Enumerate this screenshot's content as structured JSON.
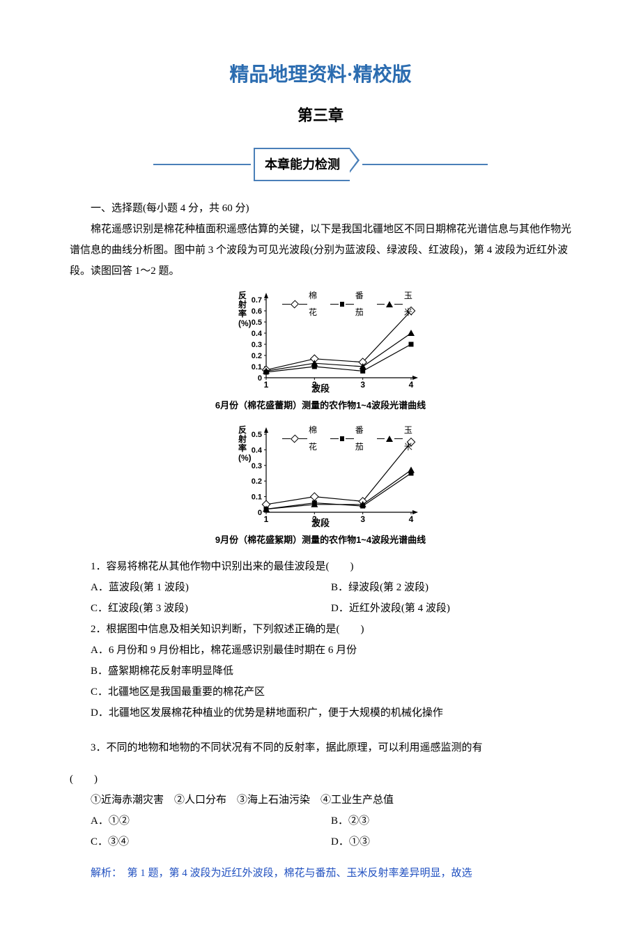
{
  "banner": "精品地理资料·精校版",
  "chapter": "第三章",
  "section_badge": "本章能力检测",
  "part1_heading": "一、选择题(每小题 4 分，共 60 分)",
  "intro_para": "棉花遥感识别是棉花种植面积遥感估算的关键，以下是我国北疆地区不同日期棉花光谱信息与其他作物光谱信息的曲线分析图。图中前 3 个波段为可见光波段(分别为蓝波段、绿波段、红波段)，第 4 波段为近红外波段。读图回答 1～2 题。",
  "chart": {
    "ylabel": "反射率(%)",
    "xlabel": "波段",
    "legend": {
      "cotton": "棉花",
      "tomato": "番茄",
      "corn": "玉米"
    },
    "x_ticks": [
      1,
      2,
      3,
      4
    ],
    "chart1": {
      "caption": "6月份（棉花盛蕾期）测量的农作物1~4波段光谱曲线",
      "y_ticks": [
        0,
        0.1,
        0.2,
        0.3,
        0.4,
        0.5,
        0.6,
        0.7
      ],
      "ymax": 0.7,
      "cotton": [
        0.07,
        0.17,
        0.14,
        0.6
      ],
      "tomato": [
        0.05,
        0.1,
        0.06,
        0.3
      ],
      "corn": [
        0.06,
        0.13,
        0.1,
        0.4
      ]
    },
    "chart2": {
      "caption": "9月份（棉花盛絮期）测量的农作物1~4波段光谱曲线",
      "y_ticks": [
        0,
        0.1,
        0.2,
        0.3,
        0.4,
        0.5
      ],
      "ymax": 0.5,
      "cotton": [
        0.05,
        0.1,
        0.07,
        0.45
      ],
      "tomato": [
        0.02,
        0.06,
        0.04,
        0.25
      ],
      "corn": [
        0.02,
        0.05,
        0.05,
        0.27
      ]
    },
    "axis_color": "#000000",
    "line_color": "#000000"
  },
  "q1": {
    "text": "1．容易将棉花从其他作物中识别出来的最佳波段是(　　)",
    "A": "A．蓝波段(第 1 波段)",
    "B": "B．绿波段(第 2 波段)",
    "C": "C．红波段(第 3 波段)",
    "D": "D．近红外波段(第 4 波段)"
  },
  "q2": {
    "text": "2．根据图中信息及相关知识判断，下列叙述正确的是(　　)",
    "A": "A．6 月份和 9 月份相比，棉花遥感识别最佳时期在 6 月份",
    "B": "B．盛絮期棉花反射率明显降低",
    "C": "C．北疆地区是我国最重要的棉花产区",
    "D": "D．北疆地区发展棉花种植业的优势是耕地面积广，便于大规模的机械化操作"
  },
  "q3": {
    "text_a": "3．不同的地物和地物的不同状况有不同的反射率，据此原理，可以利用遥感监测的有",
    "text_b": "(　　)",
    "opts_line": "①近海赤潮灾害　②人口分布　③海上石油污染　④工业生产总值",
    "A": "A．①②",
    "B": "B．②③",
    "C": "C．③④",
    "D": "D．①③"
  },
  "analysis": {
    "label": "解析：",
    "text": "　第 1 题，第 4 波段为近红外波段，棉花与番茄、玉米反射率差异明显，故选"
  }
}
